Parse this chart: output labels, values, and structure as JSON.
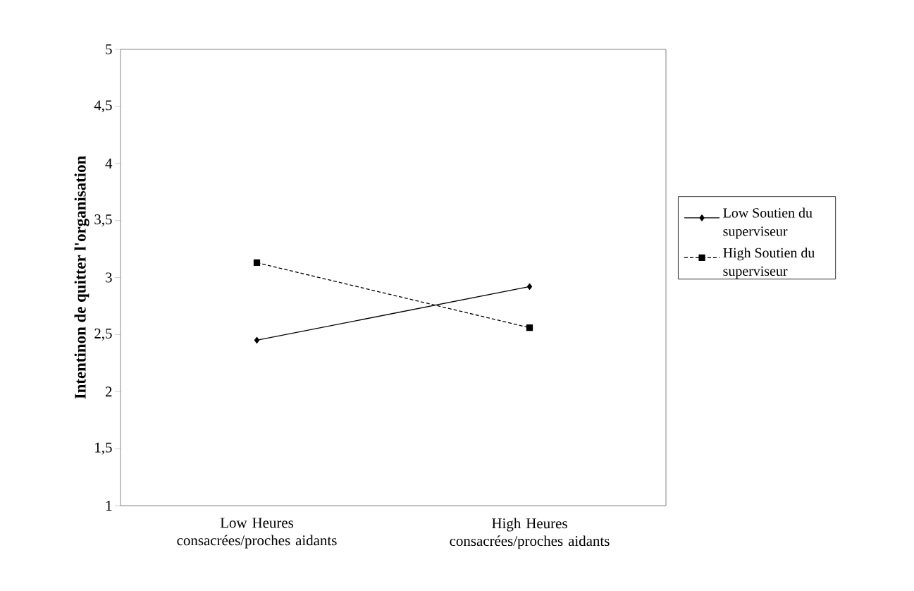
{
  "chart_data": {
    "type": "line",
    "ylabel": "Intentinon de quitter l'organisation",
    "categories": [
      "Low Heures consacrées/proches aidants",
      "High Heures consacrées/proches aidants"
    ],
    "series": [
      {
        "name": "Low Soutien du superviseur",
        "color": "#000000",
        "values": [
          2.45,
          2.92
        ],
        "marker": "diamond",
        "line_style": "solid"
      },
      {
        "name": "High Soutien du superviseur",
        "color": "#000000",
        "values": [
          3.13,
          2.56
        ],
        "marker": "square",
        "line_style": "dashed"
      }
    ],
    "ylim": [
      1,
      5
    ],
    "yticks": [
      1,
      {
        "value": 1.5,
        "label": "1,5"
      },
      2,
      {
        "value": 2.5,
        "label": "2,5"
      },
      3,
      {
        "value": 3.5,
        "label": "3,5"
      },
      4,
      {
        "value": 4.5,
        "label": "4,5"
      },
      5
    ],
    "grid": false,
    "legend": "right"
  }
}
